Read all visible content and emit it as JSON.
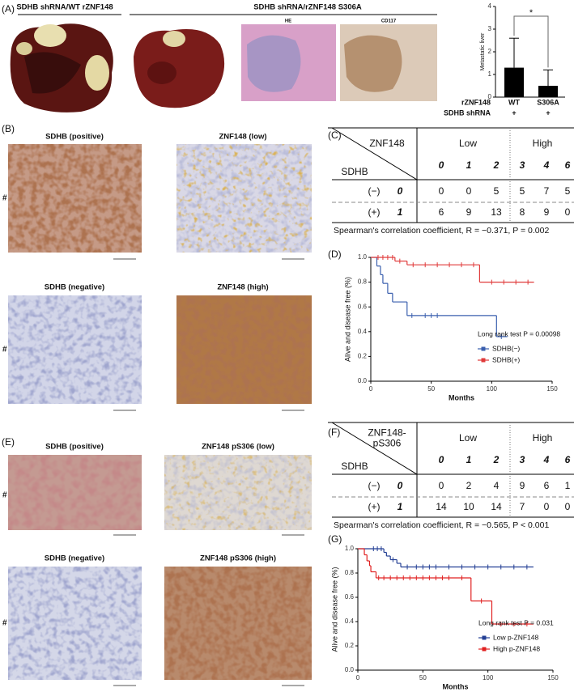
{
  "panel_labels": [
    "(A)",
    "(B)",
    "(C)",
    "(D)",
    "(E)",
    "(F)",
    "(G)"
  ],
  "panel_a": {
    "group_labels": [
      "SDHB shRNA/WT rZNF148",
      "SDHB shRNA/rZNF148 S306A"
    ],
    "stain_labels": [
      "HE",
      "CD117"
    ]
  },
  "panel_b": {
    "image_titles": [
      "SDHB (positive)",
      "ZNF148 (low)",
      "SDHB (negative)",
      "ZNF148 (high)"
    ],
    "case_labels": [
      "# 1",
      "# 2"
    ]
  },
  "panel_e": {
    "image_titles": [
      "SDHB (positive)",
      "ZNF148 pS306 (low)",
      "SDHB (negative)",
      "ZNF148 pS306 (high)"
    ],
    "case_labels": [
      "# 3",
      "# 4"
    ]
  },
  "table_c": {
    "corner_top": [
      "ZNF148"
    ],
    "corner_bottom": "SDHB",
    "group_labels": [
      "Low",
      "High"
    ],
    "column_headers": [
      "0",
      "1",
      "2",
      "3",
      "4",
      "6"
    ],
    "rows": [
      {
        "labels": [
          "(−)",
          "0"
        ],
        "cells": [
          0,
          0,
          5,
          5,
          7,
          5
        ]
      },
      {
        "labels": [
          "(+)",
          "1"
        ],
        "cells": [
          6,
          9,
          13,
          8,
          9,
          0
        ]
      }
    ],
    "footnote": "Spearman's correlation coefficient, R = −0.371,  P = 0.002"
  },
  "table_f": {
    "corner_top": [
      "ZNF148-",
      "pS306"
    ],
    "corner_bottom": "SDHB",
    "group_labels": [
      "Low",
      "High"
    ],
    "column_headers": [
      "0",
      "1",
      "2",
      "3",
      "4",
      "6"
    ],
    "rows": [
      {
        "labels": [
          "(−)",
          "0"
        ],
        "cells": [
          0,
          2,
          4,
          9,
          6,
          1
        ]
      },
      {
        "labels": [
          "(+)",
          "1"
        ],
        "cells": [
          14,
          10,
          14,
          7,
          0,
          0
        ]
      }
    ],
    "footnote": "Spearman's correlation coefficient, R = −0.565,  P < 0.001"
  },
  "chart_data": [
    {
      "type": "bar",
      "ylabel": "Metastatic liver",
      "categories": [
        "WT",
        "S306A"
      ],
      "values": [
        1.3,
        0.5
      ],
      "errors": [
        1.3,
        0.7
      ],
      "color": "#000000",
      "ylim": [
        0,
        4
      ],
      "yticks": [
        0,
        1,
        2,
        3,
        4
      ],
      "annotation": "*",
      "row_labels": [
        "rZNF148",
        "SDHB shRNA"
      ],
      "shrna_row": [
        "+",
        "+"
      ]
    },
    {
      "type": "step",
      "xlabel": "Months",
      "ylabel": "Alive and disease free (%)",
      "annotation": "Long rank test P = 0.00098",
      "xlim": [
        0,
        150
      ],
      "xticks": [
        0,
        50,
        100,
        150
      ],
      "ylim": [
        0,
        1
      ],
      "yticks": [
        {
          "value": 0,
          "label": "0.0"
        },
        0.2,
        0.4,
        0.6,
        0.8,
        {
          "value": 1,
          "label": "1.0"
        }
      ],
      "series": [
        {
          "name": "SDHB(−)",
          "color": "#3a5fae",
          "x": [
            0,
            5,
            8,
            10,
            14,
            18,
            30,
            104,
            113
          ],
          "values": [
            1,
            0.93,
            0.86,
            0.79,
            0.71,
            0.64,
            0.53,
            0.36,
            0.36
          ],
          "censored": {
            "x": [
              34,
              45,
              50,
              55,
              108
            ],
            "values": [
              0.53,
              0.53,
              0.53,
              0.53,
              0.36
            ]
          }
        },
        {
          "name": "SDHB(+)",
          "color": "#e03a3a",
          "x": [
            0,
            20,
            30,
            90,
            135
          ],
          "values": [
            1,
            0.97,
            0.94,
            0.8,
            0.8
          ],
          "censored": {
            "x": [
              6,
              10,
              14,
              18,
              24,
              35,
              45,
              55,
              65,
              75,
              85,
              100,
              110,
              120,
              130
            ],
            "values": [
              1,
              1,
              1,
              1,
              0.97,
              0.94,
              0.94,
              0.94,
              0.94,
              0.94,
              0.94,
              0.8,
              0.8,
              0.8,
              0.8
            ]
          }
        }
      ]
    },
    {
      "type": "step",
      "xlabel": "Months",
      "ylabel": "Alive and disease free (%)",
      "annotation": "Long rank test P = 0.031",
      "xlim": [
        0,
        150
      ],
      "xticks": [
        0,
        50,
        100,
        150
      ],
      "ylim": [
        0,
        1
      ],
      "yticks": [
        {
          "value": 0,
          "label": "0.0"
        },
        0.2,
        0.4,
        0.6,
        0.8,
        {
          "value": 1,
          "label": "1.0"
        }
      ],
      "series": [
        {
          "name": "Low p-ZNF148",
          "color": "#233f94",
          "x": [
            0,
            20,
            22,
            25,
            30,
            33,
            135
          ],
          "values": [
            1,
            0.97,
            0.94,
            0.91,
            0.88,
            0.85,
            0.85
          ],
          "censored": {
            "x": [
              12,
              15,
              18,
              27,
              38,
              45,
              50,
              55,
              60,
              70,
              80,
              90,
              100,
              110,
              120,
              130
            ],
            "values": [
              1,
              1,
              1,
              0.91,
              0.85,
              0.85,
              0.85,
              0.85,
              0.85,
              0.85,
              0.85,
              0.85,
              0.85,
              0.85,
              0.85,
              0.85
            ]
          }
        },
        {
          "name": "High p-ZNF148",
          "color": "#e02020",
          "x": [
            0,
            5,
            7,
            9,
            10,
            14,
            87,
            103,
            135
          ],
          "values": [
            1,
            0.95,
            0.9,
            0.86,
            0.81,
            0.76,
            0.57,
            0.38,
            0.38
          ],
          "censored": {
            "x": [
              16,
              20,
              25,
              30,
              35,
              40,
              45,
              50,
              55,
              60,
              65,
              70,
              80,
              95,
              110,
              120,
              130
            ],
            "values": [
              0.76,
              0.76,
              0.76,
              0.76,
              0.76,
              0.76,
              0.76,
              0.76,
              0.76,
              0.76,
              0.76,
              0.76,
              0.76,
              0.57,
              0.38,
              0.38,
              0.38
            ]
          }
        }
      ]
    }
  ]
}
